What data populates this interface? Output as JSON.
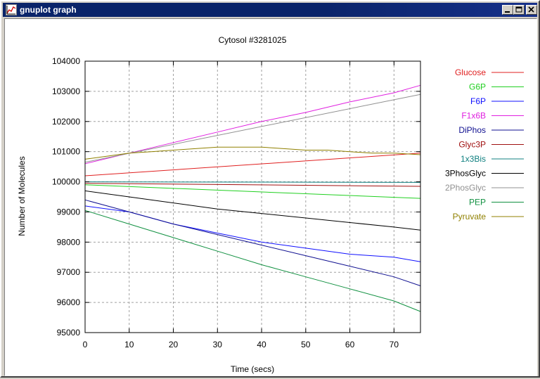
{
  "window": {
    "title": "gnuplot graph",
    "app_icon": "gnuplot-icon",
    "controls": {
      "minimize": "minimize-icon",
      "maximize": "maximize-icon",
      "close": "close-icon"
    }
  },
  "colors": {
    "titlebar": "#0a246a",
    "grid": "#a0a0a0",
    "Glucose": "#e02020",
    "G6P": "#20d020",
    "F6P": "#1010ff",
    "F1x6B": "#e020e0",
    "DiPhos": "#101090",
    "Glyc3P": "#a01010",
    "1x3Bis": "#108080",
    "3PhosGlyc": "#000000",
    "2PhosGlyc": "#909090",
    "PEP": "#109040",
    "Pyruvate": "#908000"
  },
  "chart_data": {
    "type": "line",
    "title": "Cytosol #3281025",
    "xlabel": "Time (secs)",
    "ylabel": "Number of Molecules",
    "xlim": [
      0,
      76
    ],
    "ylim": [
      95000,
      104000
    ],
    "xticks": [
      0,
      10,
      20,
      30,
      40,
      50,
      60,
      70
    ],
    "yticks": [
      95000,
      96000,
      97000,
      98000,
      99000,
      100000,
      101000,
      102000,
      103000,
      104000
    ],
    "grid": true,
    "legend_position": "right",
    "series": [
      {
        "name": "Glucose",
        "x": [
          0,
          76
        ],
        "y": [
          100200,
          100950
        ]
      },
      {
        "name": "G6P",
        "x": [
          0,
          76
        ],
        "y": [
          99900,
          99450
        ]
      },
      {
        "name": "F6P",
        "x": [
          0,
          10,
          20,
          30,
          40,
          50,
          60,
          70,
          76
        ],
        "y": [
          99200,
          99000,
          98600,
          98300,
          98000,
          97800,
          97600,
          97500,
          97350
        ]
      },
      {
        "name": "F1x6B",
        "x": [
          0,
          10,
          20,
          30,
          40,
          50,
          60,
          70,
          76
        ],
        "y": [
          100600,
          100950,
          101300,
          101650,
          102000,
          102300,
          102650,
          102950,
          103200
        ]
      },
      {
        "name": "DiPhos",
        "x": [
          0,
          10,
          20,
          30,
          40,
          50,
          60,
          70,
          76
        ],
        "y": [
          99400,
          99000,
          98600,
          98250,
          97900,
          97550,
          97200,
          96850,
          96550
        ]
      },
      {
        "name": "Glyc3P",
        "x": [
          0,
          76
        ],
        "y": [
          99950,
          99850
        ]
      },
      {
        "name": "1x3Bis",
        "x": [
          0,
          76
        ],
        "y": [
          100000,
          99980
        ]
      },
      {
        "name": "3PhosGlyc",
        "x": [
          0,
          10,
          20,
          30,
          40,
          50,
          60,
          70,
          76
        ],
        "y": [
          99700,
          99500,
          99300,
          99100,
          98950,
          98800,
          98650,
          98500,
          98400
        ]
      },
      {
        "name": "2PhosGlyc",
        "x": [
          0,
          76
        ],
        "y": [
          100650,
          102900
        ]
      },
      {
        "name": "PEP",
        "x": [
          0,
          10,
          20,
          30,
          40,
          50,
          60,
          70,
          76
        ],
        "y": [
          99050,
          98600,
          98150,
          97700,
          97250,
          96850,
          96450,
          96050,
          95700
        ]
      },
      {
        "name": "Pyruvate",
        "x": [
          0,
          5,
          10,
          15,
          20,
          25,
          30,
          35,
          40,
          45,
          50,
          55,
          60,
          65,
          70,
          76
        ],
        "y": [
          100750,
          100850,
          100950,
          101000,
          101050,
          101100,
          101150,
          101150,
          101150,
          101100,
          101050,
          101050,
          101000,
          100950,
          100950,
          100900
        ]
      }
    ]
  }
}
